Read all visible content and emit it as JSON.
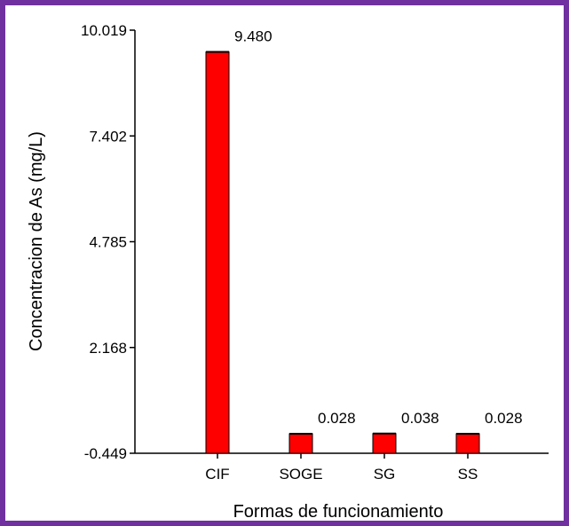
{
  "chart_data": {
    "type": "bar",
    "title": "",
    "xlabel": "Formas de funcionamiento",
    "ylabel": "Concentracion de As (mg/L)",
    "categories": [
      "CIF",
      "SOGE",
      "SG",
      "SS"
    ],
    "values": [
      9.48,
      0.028,
      0.038,
      0.028
    ],
    "data_labels": [
      "9.480",
      "0.028",
      "0.038",
      "0.028"
    ],
    "yticks": [
      -0.449,
      2.168,
      4.785,
      7.402,
      10.019
    ],
    "ytick_labels": [
      "-0.449",
      "2.168",
      "4.785",
      "7.402",
      "10.019"
    ],
    "ylim": [
      -0.449,
      10.019
    ],
    "bar_color": "#ff0000",
    "bar_edge_color": "#000000",
    "frame_color": "#7030a0",
    "grid": false,
    "legend": false
  }
}
